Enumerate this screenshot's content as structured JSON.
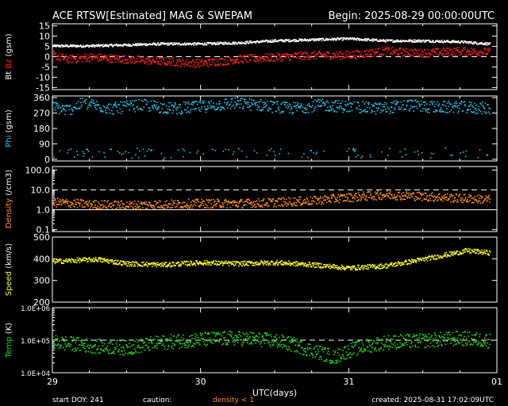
{
  "title_left": "ACE RTSW[Estimated] MAG & SWEPAM",
  "title_right": "Begin: 2025-08-29 00:00:00UTC",
  "x_axis": {
    "label": "UTC(days)",
    "range": [
      0,
      3
    ],
    "ticks": [
      {
        "v": 0,
        "label": "29"
      },
      {
        "v": 1,
        "label": "30"
      },
      {
        "v": 2,
        "label": "31"
      },
      {
        "v": 3,
        "label": "01"
      }
    ]
  },
  "footer": {
    "start_doy": "start DOY: 241",
    "caution": "caution:",
    "density_note": "density < 1",
    "created": "created: 2025-08-31 17:02:09UTC"
  },
  "colors": {
    "bt": "#ffffff",
    "bz": "#ff2020",
    "phi": "#1ec8f0",
    "density": "#ff9020",
    "speed": "#ffff20",
    "temp": "#20e020",
    "caution": "#ff9020"
  },
  "chart_data": [
    {
      "type": "scatter",
      "name": "mag_b",
      "ylabel_parts": [
        "Bt",
        "Bz",
        "(gsm)"
      ],
      "ylim": [
        -16,
        16
      ],
      "ticks": [
        {
          "v": 15,
          "label": "15"
        },
        {
          "v": 10,
          "label": "10"
        },
        {
          "v": 5,
          "label": "5"
        },
        {
          "v": 0,
          "label": "0"
        },
        {
          "v": -5,
          "label": "-5"
        },
        {
          "v": -10,
          "label": "-10"
        },
        {
          "v": -15,
          "label": "-15"
        }
      ],
      "refline": 0,
      "series": [
        {
          "name": "Bt",
          "points": [
            [
              0,
              5.5
            ],
            [
              0.25,
              5.5
            ],
            [
              0.5,
              6
            ],
            [
              0.75,
              6.5
            ],
            [
              1,
              6.5
            ],
            [
              1.25,
              7
            ],
            [
              1.5,
              8
            ],
            [
              1.75,
              8.5
            ],
            [
              2,
              9
            ],
            [
              2.25,
              8
            ],
            [
              2.5,
              8
            ],
            [
              2.75,
              7.5
            ],
            [
              2.95,
              6.5
            ]
          ]
        },
        {
          "name": "Bz",
          "points": [
            [
              0,
              1
            ],
            [
              0.1,
              -1
            ],
            [
              0.25,
              0
            ],
            [
              0.5,
              -1
            ],
            [
              0.75,
              -2
            ],
            [
              1,
              -3
            ],
            [
              1.25,
              -1
            ],
            [
              1.5,
              0
            ],
            [
              1.75,
              1
            ],
            [
              2,
              1
            ],
            [
              2.25,
              3
            ],
            [
              2.5,
              2
            ],
            [
              2.75,
              3
            ],
            [
              2.95,
              2.5
            ]
          ]
        }
      ]
    },
    {
      "type": "scatter",
      "name": "phi",
      "ylabel_parts": [
        "Phi",
        "(gsm)"
      ],
      "ylim": [
        -10,
        370
      ],
      "ticks": [
        {
          "v": 360,
          "label": "360"
        },
        {
          "v": 270,
          "label": "270"
        },
        {
          "v": 180,
          "label": "180"
        },
        {
          "v": 90,
          "label": "90"
        },
        {
          "v": 0,
          "label": "0"
        }
      ],
      "series": [
        {
          "name": "Phi",
          "points": [
            [
              0,
              310
            ],
            [
              0.1,
              290
            ],
            [
              0.2,
              330
            ],
            [
              0.4,
              300
            ],
            [
              0.6,
              320
            ],
            [
              0.8,
              300
            ],
            [
              1,
              310
            ],
            [
              1.2,
              330
            ],
            [
              1.4,
              320
            ],
            [
              1.6,
              300
            ],
            [
              1.8,
              320
            ],
            [
              2,
              310
            ],
            [
              2.2,
              300
            ],
            [
              2.4,
              320
            ],
            [
              2.6,
              305
            ],
            [
              2.7,
              310
            ],
            [
              2.95,
              300
            ]
          ]
        }
      ]
    },
    {
      "type": "scatter",
      "name": "density",
      "scale": "log",
      "ylabel_parts": [
        "Density",
        "(/cm3)"
      ],
      "ylim": [
        0.08,
        150
      ],
      "ticks": [
        {
          "v": 100,
          "label": "100.0"
        },
        {
          "v": 10,
          "label": "10.0"
        },
        {
          "v": 1,
          "label": "1.0"
        },
        {
          "v": 0.1,
          "label": "0.1"
        }
      ],
      "reflines": [
        {
          "v": 10,
          "style": "dashed"
        },
        {
          "v": 1,
          "style": "solid"
        }
      ],
      "series": [
        {
          "name": "Density",
          "points": [
            [
              0,
              2.5
            ],
            [
              0.25,
              2
            ],
            [
              0.5,
              1.8
            ],
            [
              0.75,
              2
            ],
            [
              1,
              2.2
            ],
            [
              1.25,
              2.2
            ],
            [
              1.5,
              2.5
            ],
            [
              1.75,
              3
            ],
            [
              2,
              4.5
            ],
            [
              2.25,
              6
            ],
            [
              2.5,
              5
            ],
            [
              2.75,
              4
            ],
            [
              2.95,
              3.5
            ]
          ]
        }
      ]
    },
    {
      "type": "scatter",
      "name": "speed",
      "ylabel_parts": [
        "Speed",
        "(km/s)"
      ],
      "ylim": [
        200,
        500
      ],
      "ticks": [
        {
          "v": 500,
          "label": "500"
        },
        {
          "v": 400,
          "label": "400"
        },
        {
          "v": 300,
          "label": "300"
        },
        {
          "v": 200,
          "label": "200"
        }
      ],
      "series": [
        {
          "name": "Speed",
          "points": [
            [
              0,
              390
            ],
            [
              0.15,
              395
            ],
            [
              0.3,
              400
            ],
            [
              0.5,
              380
            ],
            [
              0.75,
              375
            ],
            [
              1,
              385
            ],
            [
              1.25,
              380
            ],
            [
              1.5,
              385
            ],
            [
              1.75,
              375
            ],
            [
              2,
              360
            ],
            [
              2.25,
              370
            ],
            [
              2.5,
              400
            ],
            [
              2.65,
              420
            ],
            [
              2.8,
              440
            ],
            [
              2.95,
              430
            ]
          ]
        }
      ]
    },
    {
      "type": "scatter",
      "name": "temp",
      "scale": "log",
      "ylabel_parts": [
        "Temp",
        "(K)"
      ],
      "ylim": [
        10000,
        1000000
      ],
      "ticks": [
        {
          "v": 1000000,
          "label": "1.0E+06"
        },
        {
          "v": 100000,
          "label": "1.0E+05"
        },
        {
          "v": 10000,
          "label": "1.0E+04"
        }
      ],
      "refline": 100000,
      "series": [
        {
          "name": "Temp",
          "points": [
            [
              0,
              90000
            ],
            [
              0.25,
              70000
            ],
            [
              0.5,
              60000
            ],
            [
              0.75,
              90000
            ],
            [
              1,
              110000
            ],
            [
              1.25,
              120000
            ],
            [
              1.5,
              100000
            ],
            [
              1.75,
              50000
            ],
            [
              1.9,
              30000
            ],
            [
              2,
              50000
            ],
            [
              2.25,
              90000
            ],
            [
              2.5,
              100000
            ],
            [
              2.75,
              120000
            ],
            [
              2.95,
              100000
            ]
          ]
        }
      ]
    }
  ]
}
